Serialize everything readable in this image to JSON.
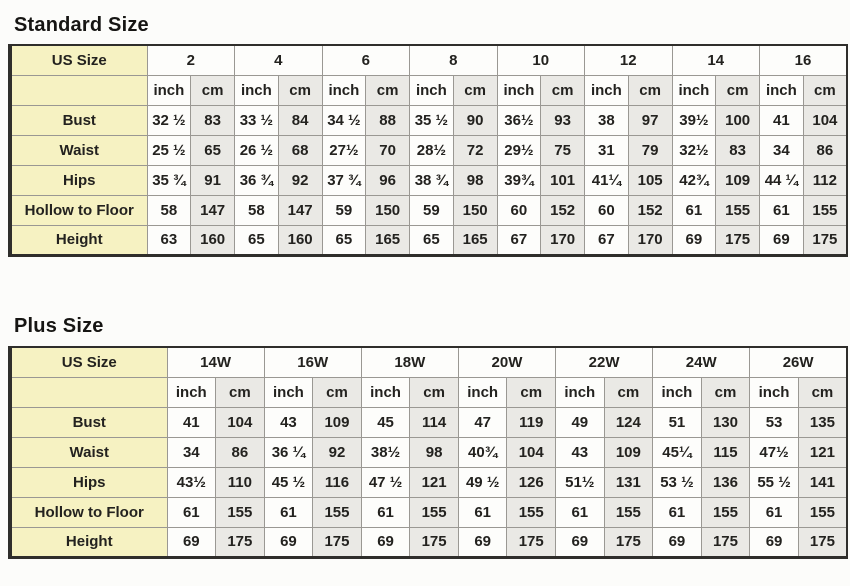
{
  "colors": {
    "label_yellow": "#f6f2c2",
    "cell_white": "#fdfdfb",
    "cell_gray": "#eae9e5",
    "outer_border": "#2f2e2b"
  },
  "tables": [
    {
      "title": "Standard Size",
      "corner_label": "US Size",
      "unit_labels": [
        "inch",
        "cm"
      ],
      "sizes": [
        "2",
        "4",
        "6",
        "8",
        "10",
        "12",
        "14",
        "16"
      ],
      "rows": [
        {
          "label": "Bust",
          "values": [
            [
              "32 ½",
              "83"
            ],
            [
              "33 ½",
              "84"
            ],
            [
              "34 ½",
              "88"
            ],
            [
              "35 ½",
              "90"
            ],
            [
              "36½",
              "93"
            ],
            [
              "38",
              "97"
            ],
            [
              "39½",
              "100"
            ],
            [
              "41",
              "104"
            ]
          ]
        },
        {
          "label": "Waist",
          "values": [
            [
              "25 ½",
              "65"
            ],
            [
              "26 ½",
              "68"
            ],
            [
              "27½",
              "70"
            ],
            [
              "28½",
              "72"
            ],
            [
              "29½",
              "75"
            ],
            [
              "31",
              "79"
            ],
            [
              "32½",
              "83"
            ],
            [
              "34",
              "86"
            ]
          ]
        },
        {
          "label": "Hips",
          "values": [
            [
              "35 ¾",
              "91"
            ],
            [
              "36 ¾",
              "92"
            ],
            [
              "37 ¾",
              "96"
            ],
            [
              "38 ¾",
              "98"
            ],
            [
              "39¾",
              "101"
            ],
            [
              "41¼",
              "105"
            ],
            [
              "42¾",
              "109"
            ],
            [
              "44 ¼",
              "112"
            ]
          ]
        },
        {
          "label": "Hollow to Floor",
          "values": [
            [
              "58",
              "147"
            ],
            [
              "58",
              "147"
            ],
            [
              "59",
              "150"
            ],
            [
              "59",
              "150"
            ],
            [
              "60",
              "152"
            ],
            [
              "60",
              "152"
            ],
            [
              "61",
              "155"
            ],
            [
              "61",
              "155"
            ]
          ]
        },
        {
          "label": "Height",
          "values": [
            [
              "63",
              "160"
            ],
            [
              "65",
              "160"
            ],
            [
              "65",
              "165"
            ],
            [
              "65",
              "165"
            ],
            [
              "67",
              "170"
            ],
            [
              "67",
              "170"
            ],
            [
              "69",
              "175"
            ],
            [
              "69",
              "175"
            ]
          ]
        }
      ]
    },
    {
      "title": "Plus Size",
      "corner_label": "US Size",
      "unit_labels": [
        "inch",
        "cm"
      ],
      "sizes": [
        "14W",
        "16W",
        "18W",
        "20W",
        "22W",
        "24W",
        "26W"
      ],
      "rows": [
        {
          "label": "Bust",
          "values": [
            [
              "41",
              "104"
            ],
            [
              "43",
              "109"
            ],
            [
              "45",
              "114"
            ],
            [
              "47",
              "119"
            ],
            [
              "49",
              "124"
            ],
            [
              "51",
              "130"
            ],
            [
              "53",
              "135"
            ]
          ]
        },
        {
          "label": "Waist",
          "values": [
            [
              "34",
              "86"
            ],
            [
              "36 ¼",
              "92"
            ],
            [
              "38½",
              "98"
            ],
            [
              "40¾",
              "104"
            ],
            [
              "43",
              "109"
            ],
            [
              "45¼",
              "115"
            ],
            [
              "47½",
              "121"
            ]
          ]
        },
        {
          "label": "Hips",
          "values": [
            [
              "43½",
              "110"
            ],
            [
              "45 ½",
              "116"
            ],
            [
              "47 ½",
              "121"
            ],
            [
              "49 ½",
              "126"
            ],
            [
              "51½",
              "131"
            ],
            [
              "53 ½",
              "136"
            ],
            [
              "55 ½",
              "141"
            ]
          ]
        },
        {
          "label": "Hollow to Floor",
          "values": [
            [
              "61",
              "155"
            ],
            [
              "61",
              "155"
            ],
            [
              "61",
              "155"
            ],
            [
              "61",
              "155"
            ],
            [
              "61",
              "155"
            ],
            [
              "61",
              "155"
            ],
            [
              "61",
              "155"
            ]
          ]
        },
        {
          "label": "Height",
          "values": [
            [
              "69",
              "175"
            ],
            [
              "69",
              "175"
            ],
            [
              "69",
              "175"
            ],
            [
              "69",
              "175"
            ],
            [
              "69",
              "175"
            ],
            [
              "69",
              "175"
            ],
            [
              "69",
              "175"
            ]
          ]
        }
      ]
    }
  ]
}
